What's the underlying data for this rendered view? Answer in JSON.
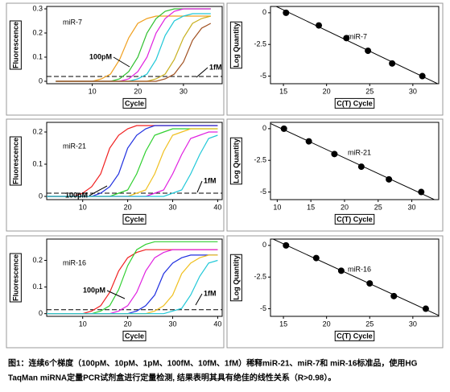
{
  "chart_data": [
    {
      "type": "line",
      "annotations": [
        "miR-7",
        "100pM",
        "1fM"
      ],
      "ylabel": "Fluorescence",
      "xlabel": "Cycle",
      "xlim": [
        0,
        38.5
      ],
      "xticks": [
        10,
        20,
        30
      ],
      "ylim": [
        -0.01,
        0.31
      ],
      "yticks": [
        0,
        0.1,
        0.2,
        0.3
      ],
      "threshold": 0.02,
      "x": [
        2,
        4,
        6,
        8,
        10,
        12,
        14,
        16,
        18,
        20,
        22,
        24,
        26,
        28,
        30,
        32,
        34,
        36
      ],
      "series": [
        {
          "color": "#f0a020",
          "values": [
            0,
            0,
            0,
            0,
            0,
            0.01,
            0.03,
            0.09,
            0.18,
            0.24,
            0.26,
            0.27,
            0.27,
            0.27,
            0.27,
            0.27,
            0.27,
            0.27
          ]
        },
        {
          "color": "#30c030",
          "values": [
            0,
            0,
            0,
            0,
            0,
            0,
            0,
            0.01,
            0.04,
            0.1,
            0.2,
            0.26,
            0.29,
            0.3,
            0.3,
            0.3,
            0.3,
            0.3
          ]
        },
        {
          "color": "#e020e0",
          "values": [
            0,
            0,
            0,
            0,
            0,
            0,
            0,
            0,
            0.01,
            0.04,
            0.1,
            0.2,
            0.26,
            0.29,
            0.3,
            0.3,
            0.3,
            0.3
          ]
        },
        {
          "color": "#20c8d8",
          "values": [
            0,
            0,
            0,
            0,
            0,
            0,
            0,
            0,
            0,
            0.01,
            0.03,
            0.09,
            0.19,
            0.25,
            0.27,
            0.28,
            0.28,
            0.28
          ]
        },
        {
          "color": "#c8b020",
          "values": [
            0,
            0,
            0,
            0,
            0,
            0,
            0,
            0,
            0,
            0,
            0,
            0.01,
            0.03,
            0.09,
            0.18,
            0.24,
            0.26,
            0.27
          ]
        },
        {
          "color": "#a05020",
          "values": [
            0,
            0,
            0,
            0,
            0,
            0,
            0,
            0,
            0,
            0,
            0,
            0,
            0.01,
            0.03,
            0.08,
            0.17,
            0.22,
            0.24
          ]
        }
      ]
    },
    {
      "type": "scatter",
      "annotations": [
        "miR-7"
      ],
      "ylabel": "Log Quantity",
      "xlabel": "C(T) Cycle",
      "xlim": [
        13.5,
        33
      ],
      "xticks": [
        15,
        20,
        25,
        30
      ],
      "ylim": [
        -5.6,
        0.5
      ],
      "yticks": [
        0,
        -2.5,
        -5
      ],
      "trendline": true,
      "x": [
        15.3,
        19.1,
        22.3,
        24.8,
        27.6,
        31.1
      ],
      "values": [
        0,
        -1,
        -2,
        -3,
        -4,
        -5
      ]
    },
    {
      "type": "line",
      "annotations": [
        "miR-21",
        "100pM",
        "1fM"
      ],
      "ylabel": "Fluorescence",
      "xlabel": "Cycle",
      "xlim": [
        2,
        41
      ],
      "xticks": [
        10,
        20,
        30,
        40
      ],
      "ylim": [
        -0.01,
        0.23
      ],
      "yticks": [
        0,
        0.1,
        0.2
      ],
      "threshold": 0.01,
      "x": [
        2,
        4,
        6,
        8,
        10,
        12,
        14,
        16,
        18,
        20,
        22,
        24,
        26,
        28,
        30,
        32,
        34,
        36,
        38,
        40
      ],
      "series": [
        {
          "color": "#f02020",
          "values": [
            0,
            0,
            0,
            0,
            0.01,
            0.03,
            0.07,
            0.15,
            0.19,
            0.21,
            0.22,
            0.22,
            0.22,
            0.22,
            0.22,
            0.22,
            0.22,
            0.22,
            0.22,
            0.22
          ]
        },
        {
          "color": "#2030e0",
          "values": [
            0,
            0,
            0,
            0,
            0,
            0,
            0.01,
            0.03,
            0.07,
            0.15,
            0.19,
            0.21,
            0.22,
            0.22,
            0.22,
            0.22,
            0.22,
            0.22,
            0.22,
            0.22
          ]
        },
        {
          "color": "#30d030",
          "values": [
            0,
            0,
            0,
            0,
            0,
            0,
            0,
            0,
            0.01,
            0.02,
            0.07,
            0.14,
            0.19,
            0.2,
            0.21,
            0.21,
            0.21,
            0.21,
            0.21,
            0.21
          ]
        },
        {
          "color": "#f0c020",
          "values": [
            0,
            0,
            0,
            0,
            0,
            0,
            0,
            0,
            0,
            0,
            0.01,
            0.02,
            0.07,
            0.14,
            0.19,
            0.2,
            0.21,
            0.21,
            0.21,
            0.21
          ]
        },
        {
          "color": "#e020e0",
          "values": [
            0,
            0,
            0,
            0,
            0,
            0,
            0,
            0,
            0,
            0,
            0,
            0,
            0.01,
            0.02,
            0.07,
            0.13,
            0.18,
            0.19,
            0.2,
            0.2
          ]
        },
        {
          "color": "#20c8d8",
          "values": [
            0,
            0,
            0,
            0,
            0,
            0,
            0,
            0,
            0,
            0,
            0,
            0,
            0,
            0,
            0.01,
            0.02,
            0.07,
            0.13,
            0.18,
            0.19
          ]
        }
      ]
    },
    {
      "type": "scatter",
      "annotations": [
        "miR-21"
      ],
      "ylabel": "Log Quantity",
      "xlabel": "C(T) Cycle",
      "xlim": [
        9,
        34
      ],
      "xticks": [
        10,
        15,
        20,
        25,
        30
      ],
      "ylim": [
        -5.6,
        0.5
      ],
      "yticks": [
        0,
        -2.5,
        -5
      ],
      "trendline": true,
      "x": [
        11,
        14.7,
        18.5,
        22.5,
        26.6,
        31.4
      ],
      "values": [
        0,
        -1,
        -2,
        -3,
        -4,
        -5
      ]
    },
    {
      "type": "line",
      "annotations": [
        "miR-16",
        "100pM",
        "1fM"
      ],
      "ylabel": "Fluorescence",
      "xlabel": "Cycle",
      "xlim": [
        2,
        41
      ],
      "xticks": [
        10,
        20,
        30,
        40
      ],
      "ylim": [
        -0.01,
        0.28
      ],
      "yticks": [
        0,
        0.1,
        0.2
      ],
      "threshold": 0.015,
      "x": [
        2,
        4,
        6,
        8,
        10,
        12,
        14,
        16,
        18,
        20,
        22,
        24,
        26,
        28,
        30,
        32,
        34,
        36,
        38,
        40
      ],
      "series": [
        {
          "color": "#f02020",
          "values": [
            0,
            0,
            0,
            0,
            0,
            0.01,
            0.03,
            0.08,
            0.16,
            0.21,
            0.23,
            0.24,
            0.24,
            0.24,
            0.24,
            0.24,
            0.24,
            0.24,
            0.24,
            0.24
          ]
        },
        {
          "color": "#30d030",
          "values": [
            0,
            0,
            0,
            0,
            0,
            0,
            0.01,
            0.03,
            0.09,
            0.18,
            0.24,
            0.26,
            0.27,
            0.27,
            0.27,
            0.27,
            0.27,
            0.27,
            0.27,
            0.27
          ]
        },
        {
          "color": "#e020e0",
          "values": [
            0,
            0,
            0,
            0,
            0,
            0,
            0,
            0,
            0.01,
            0.03,
            0.08,
            0.16,
            0.21,
            0.23,
            0.24,
            0.24,
            0.24,
            0.24,
            0.24,
            0.24
          ]
        },
        {
          "color": "#2030e0",
          "values": [
            0,
            0,
            0,
            0,
            0,
            0,
            0,
            0,
            0,
            0,
            0.01,
            0.03,
            0.07,
            0.15,
            0.19,
            0.21,
            0.22,
            0.22,
            0.22,
            0.22
          ]
        },
        {
          "color": "#f0c020",
          "values": [
            0,
            0,
            0,
            0,
            0,
            0,
            0,
            0,
            0,
            0,
            0,
            0,
            0.01,
            0.03,
            0.07,
            0.15,
            0.19,
            0.21,
            0.22,
            0.22
          ]
        },
        {
          "color": "#20c8d8",
          "values": [
            0,
            0,
            0,
            0,
            0,
            0,
            0,
            0,
            0,
            0,
            0,
            0,
            0,
            0,
            0.01,
            0.02,
            0.07,
            0.14,
            0.19,
            0.2
          ]
        }
      ]
    },
    {
      "type": "scatter",
      "annotations": [
        "miR-16"
      ],
      "ylabel": "Log Quantity",
      "xlabel": "C(T) Cycle",
      "xlim": [
        13.5,
        33
      ],
      "xticks": [
        15,
        20,
        25,
        30
      ],
      "ylim": [
        -5.6,
        0.5
      ],
      "yticks": [
        0,
        -2.5,
        -5
      ],
      "trendline": true,
      "x": [
        15.3,
        18.8,
        21.7,
        25,
        27.8,
        31.5
      ],
      "values": [
        0,
        -1,
        -2,
        -3,
        -4,
        -5
      ]
    }
  ],
  "caption": [
    "图1：连续6个梯度（100pM、10pM、1pM、100fM、10fM、1fM）稀释miR-21、miR-7和 miR-16标准品，使用HG",
    "TaqMan miRNA定量PCR试剂盒进行定量检测, 结果表明其具有绝佳的线性关系（R>0.98）。"
  ]
}
